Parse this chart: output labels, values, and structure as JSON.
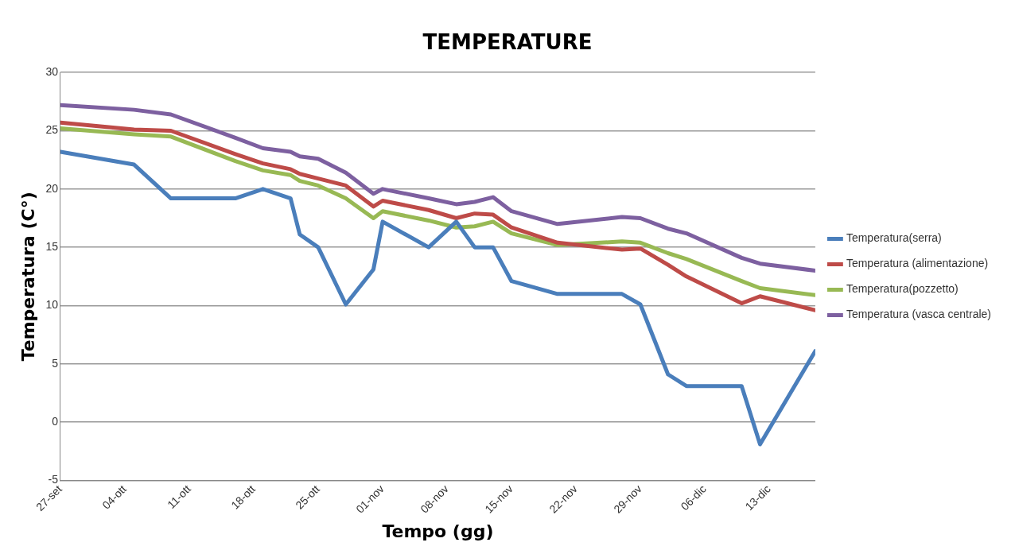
{
  "chart_data": {
    "type": "line",
    "title": "TEMPERATURE",
    "xlabel": "Tempo (gg)",
    "ylabel": "Temperatura (C°)",
    "x": [
      "--09-27",
      "--10-05",
      "--10-09",
      "--10-16",
      "--10-19",
      "--10-22",
      "--10-23",
      "--10-25",
      "--10-28",
      "--10-31",
      "--11-01",
      "--11-06",
      "--11-09",
      "--11-11",
      "--11-13",
      "--11-15",
      "--11-20",
      "--11-27",
      "--11-29",
      "--12-02",
      "--12-04",
      "--12-10",
      "--12-12",
      "--12-18"
    ],
    "series": [
      {
        "name": "Temperatura(serra)",
        "color": "#4a7ebb",
        "values": [
          23.2,
          22.1,
          19.2,
          19.2,
          20.0,
          19.2,
          16.1,
          15.0,
          10.1,
          13.1,
          17.2,
          15.0,
          17.2,
          15.0,
          15.0,
          12.1,
          11.0,
          11.0,
          10.1,
          4.1,
          3.1,
          3.1,
          -1.9,
          6.1
        ]
      },
      {
        "name": "Temperatura (alimentazione)",
        "color": "#be4b48",
        "values": [
          25.7,
          25.1,
          25.0,
          23.0,
          22.2,
          21.7,
          21.3,
          20.9,
          20.3,
          18.5,
          19.0,
          18.2,
          17.5,
          17.9,
          17.8,
          16.7,
          15.4,
          14.8,
          14.9,
          13.5,
          12.5,
          10.2,
          10.8,
          9.6
        ]
      },
      {
        "name": "Temperatura(pozzetto)",
        "color": "#98b954",
        "values": [
          25.2,
          24.7,
          24.5,
          22.4,
          21.6,
          21.2,
          20.7,
          20.3,
          19.2,
          17.5,
          18.1,
          17.3,
          16.7,
          16.8,
          17.2,
          16.2,
          15.2,
          15.5,
          15.4,
          14.5,
          14.0,
          12.1,
          11.5,
          10.9
        ]
      },
      {
        "name": "Temperatura (vasca centrale)",
        "color": "#7d60a0",
        "values": [
          27.2,
          26.8,
          26.4,
          24.4,
          23.5,
          23.2,
          22.8,
          22.6,
          21.4,
          19.6,
          20.0,
          19.2,
          18.7,
          18.9,
          19.3,
          18.1,
          17.0,
          17.6,
          17.5,
          16.6,
          16.2,
          14.1,
          13.6,
          13.0
        ]
      }
    ],
    "xlim": [
      "--09-27",
      "--12-18"
    ],
    "xticks": [
      {
        "value": "--09-27",
        "label": "27-set"
      },
      {
        "value": "--10-04",
        "label": "04-ott"
      },
      {
        "value": "--10-11",
        "label": "11-ott"
      },
      {
        "value": "--10-18",
        "label": "18-ott"
      },
      {
        "value": "--10-25",
        "label": "25-ott"
      },
      {
        "value": "--11-01",
        "label": "01-nov"
      },
      {
        "value": "--11-08",
        "label": "08-nov"
      },
      {
        "value": "--11-15",
        "label": "15-nov"
      },
      {
        "value": "--11-22",
        "label": "22-nov"
      },
      {
        "value": "--11-29",
        "label": "29-nov"
      },
      {
        "value": "--12-06",
        "label": "06-dic"
      },
      {
        "value": "--12-13",
        "label": "13-dic"
      }
    ],
    "ylim": [
      -5,
      30
    ],
    "yticks": [
      -5,
      0,
      5,
      10,
      15,
      20,
      25,
      30
    ],
    "grid": "y",
    "legend": "right",
    "marker": "none",
    "line_style": "solid"
  }
}
